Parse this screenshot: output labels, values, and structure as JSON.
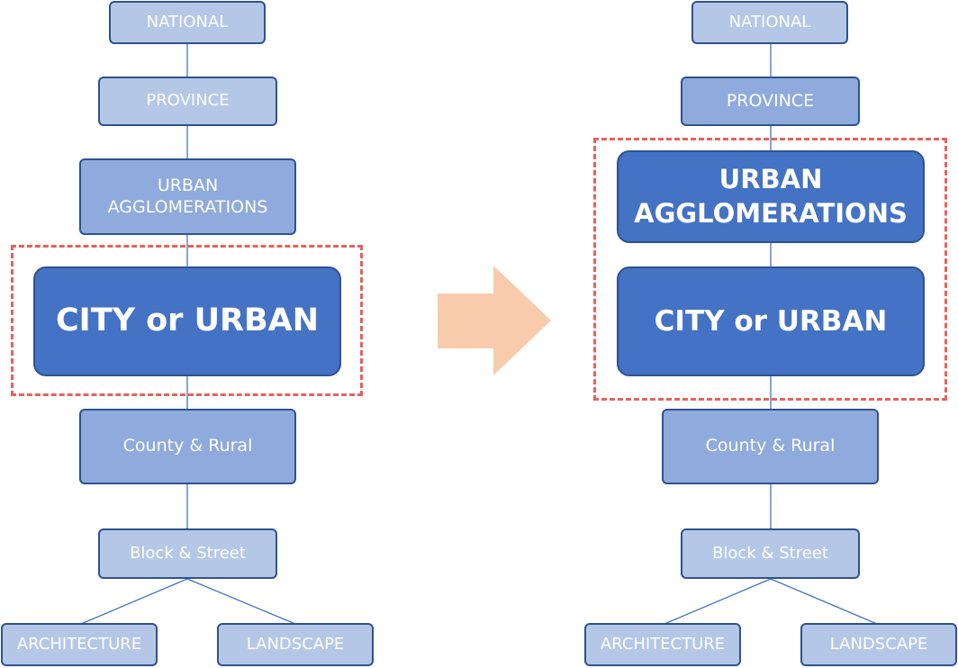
{
  "colors": {
    "light_box": "#B4C7E7",
    "mid_box": "#8FAADC",
    "dark_box": "#4472C4",
    "box_border": "#2F528F",
    "highlight_dash": "#E8615E",
    "arrow": "#F8CBAD"
  },
  "left": {
    "national": "NATIONAL",
    "province": "PROVINCE",
    "urban_line1": "URBAN",
    "urban_line2": "AGGLOMERATIONS",
    "city": "CITY or URBAN",
    "county": "County & Rural",
    "block": "Block & Street",
    "architecture": "ARCHITECTURE",
    "landscape": "LANDSCAPE"
  },
  "right": {
    "national": "NATIONAL",
    "province": "PROVINCE",
    "urban_line1": "URBAN",
    "urban_line2": "AGGLOMERATIONS",
    "city": "CITY or URBAN",
    "county": "County & Rural",
    "block": "Block & Street",
    "architecture": "ARCHITECTURE",
    "landscape": "LANDSCAPE"
  }
}
